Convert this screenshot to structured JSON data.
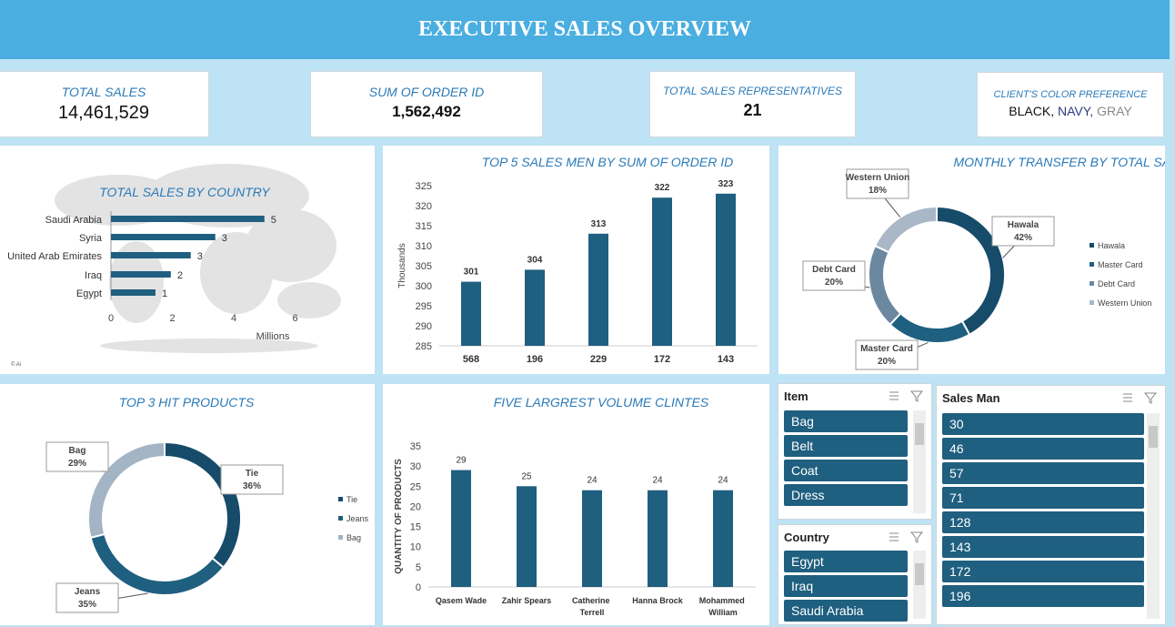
{
  "header": {
    "title": "EXECUTIVE SALES OVERVIEW"
  },
  "kpis": [
    {
      "label": "TOTAL SALES",
      "value": "14,461,529"
    },
    {
      "label": "SUM OF ORDER ID",
      "value": "1,562,492"
    },
    {
      "label": "TOTAL SALES REPRESENTATIVES",
      "value": "21"
    },
    {
      "label": "CLIENT'S COLOR PREFERENCE",
      "value": [
        "BLACK,",
        "NAVY,",
        "GRAY"
      ]
    }
  ],
  "chart_data": [
    {
      "type": "hbar",
      "title": "TOTAL SALES BY COUNTRY",
      "xlabel": "Millions",
      "note": "© Ai",
      "categories": [
        "Saudi Arabia",
        "Syria",
        "United Arab Emirates",
        "Iraq",
        "Egypt"
      ],
      "values": [
        5.0,
        3.4,
        2.6,
        1.95,
        1.45
      ],
      "value_labels": [
        "5",
        "3",
        "3",
        "2",
        "1"
      ],
      "color": "#1f5f7f",
      "xlim": [
        0,
        6
      ],
      "xticks": [
        0,
        2,
        4,
        6
      ]
    },
    {
      "type": "bar",
      "title": "TOP 5 SALES  MEN BY SUM OF ORDER ID",
      "ylabel": "Thousands",
      "categories": [
        "568",
        "196",
        "229",
        "172",
        "143"
      ],
      "values": [
        301,
        304,
        313,
        322,
        323
      ],
      "color": "#1f5f7f",
      "ylim": [
        285,
        325
      ],
      "yticks": [
        285,
        290,
        295,
        300,
        305,
        310,
        315,
        320,
        325
      ]
    },
    {
      "type": "doughnut",
      "title": "MONTHLY TRANSFER BY TOTAL SALES",
      "categories": [
        "Hawala",
        "Master Card",
        "Debt Card",
        "Western Union"
      ],
      "values": [
        42,
        20,
        20,
        18
      ],
      "value_labels": [
        "42%",
        "20%",
        "20%",
        "18%"
      ],
      "colors": [
        "#174b6a",
        "#1f5f80",
        "#6b88a0",
        "#a9b7c6"
      ],
      "legend": "right"
    },
    {
      "type": "doughnut",
      "title": "TOP 3 HIT PRODUCTS",
      "categories": [
        "Tie",
        "Jeans",
        "Bag"
      ],
      "values": [
        36,
        35,
        29
      ],
      "value_labels": [
        "36%",
        "35%",
        "29%"
      ],
      "colors": [
        "#174b6a",
        "#1f5f80",
        "#a3b4c4"
      ],
      "legend": "right"
    },
    {
      "type": "bar",
      "title": "FIVE LARGREST VOLUME CLINTES",
      "ylabel": "QUANTITY OF PRODUCTS",
      "categories": [
        "Qasem  Wade",
        "Zahir Spears",
        "Catherine Terrell",
        "Hanna Brock",
        "Mohammed William"
      ],
      "values": [
        29,
        25,
        24,
        24,
        24
      ],
      "color": "#1f5f7f",
      "ylim": [
        0,
        35
      ],
      "yticks": [
        0,
        5,
        10,
        15,
        20,
        25,
        30,
        35
      ]
    }
  ],
  "slicers": [
    {
      "title": "Item",
      "items": [
        "Bag",
        "Belt",
        "Coat",
        "Dress"
      ]
    },
    {
      "title": "Country",
      "items": [
        "Egypt",
        "Iraq",
        "Saudi Arabia"
      ]
    },
    {
      "title": "Sales Man",
      "items": [
        "30",
        "46",
        "57",
        "71",
        "128",
        "143",
        "172",
        "196"
      ]
    }
  ]
}
